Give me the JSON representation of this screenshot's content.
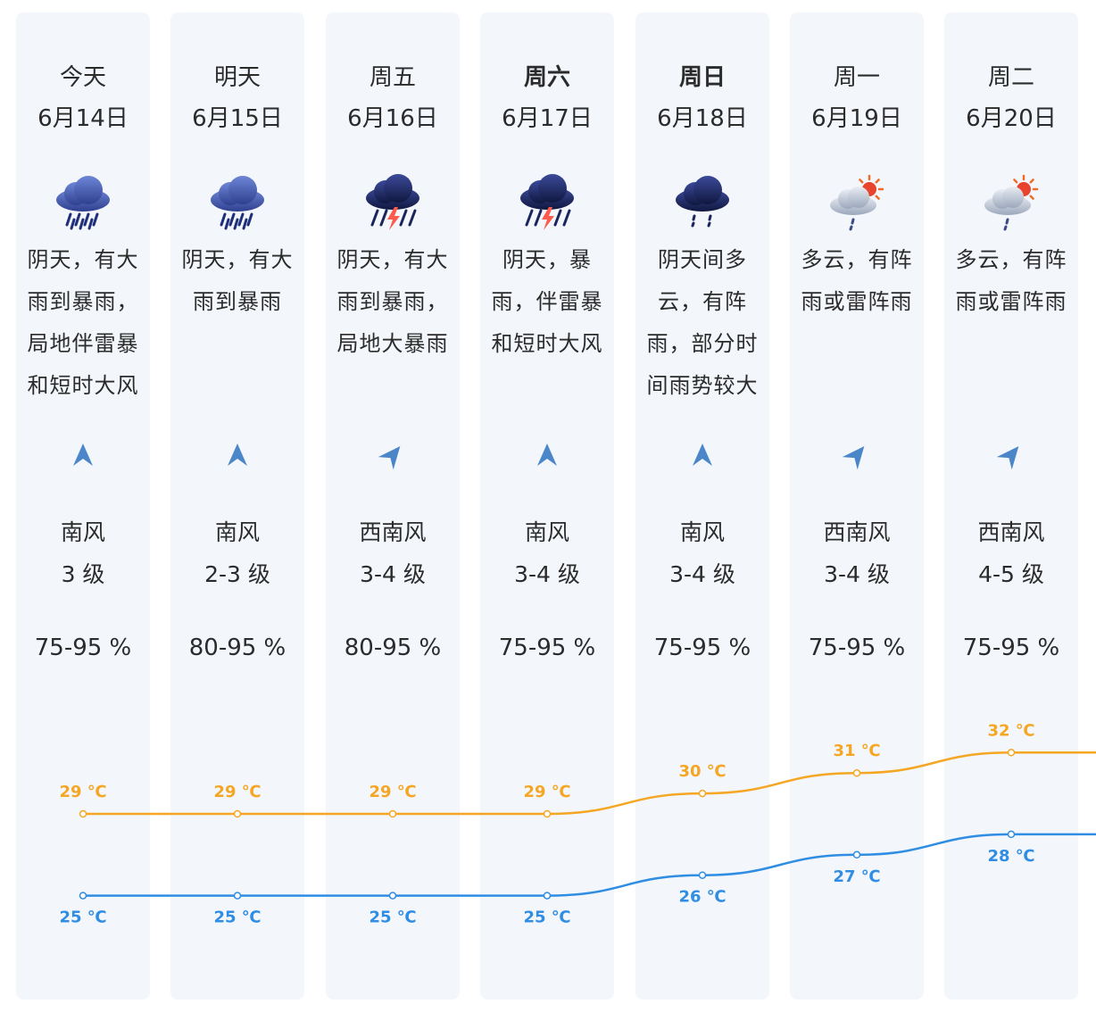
{
  "days": [
    {
      "name": "今天",
      "date": "6月14日",
      "bold": false,
      "icon": "heavy-rain-icon",
      "desc": "阴天，有大雨到暴雨，局地伴雷暴和短时大风",
      "wind_icon": "arrow-north-icon",
      "wind_dir": "南风",
      "wind_level": "3 级",
      "humidity": "75-95 %"
    },
    {
      "name": "明天",
      "date": "6月15日",
      "bold": false,
      "icon": "heavy-rain-icon",
      "desc": "阴天，有大雨到暴雨",
      "wind_icon": "arrow-north-icon",
      "wind_dir": "南风",
      "wind_level": "2-3 级",
      "humidity": "80-95 %"
    },
    {
      "name": "周五",
      "date": "6月16日",
      "bold": false,
      "icon": "thunderstorm-icon",
      "desc": "阴天，有大雨到暴雨，局地大暴雨",
      "wind_icon": "arrow-northeast-icon",
      "wind_dir": "西南风",
      "wind_level": "3-4 级",
      "humidity": "80-95 %"
    },
    {
      "name": "周六",
      "date": "6月17日",
      "bold": true,
      "icon": "thunderstorm-icon",
      "desc": "阴天，暴雨，伴雷暴和短时大风",
      "wind_icon": "arrow-north-icon",
      "wind_dir": "南风",
      "wind_level": "3-4 级",
      "humidity": "75-95 %"
    },
    {
      "name": "周日",
      "date": "6月18日",
      "bold": true,
      "icon": "light-rain-icon",
      "desc": "阴天间多云，有阵雨，部分时间雨势较大",
      "wind_icon": "arrow-north-icon",
      "wind_dir": "南风",
      "wind_level": "3-4 级",
      "humidity": "75-95 %"
    },
    {
      "name": "周一",
      "date": "6月19日",
      "bold": false,
      "icon": "sun-shower-icon",
      "desc": "多云，有阵雨或雷阵雨",
      "wind_icon": "arrow-northeast-icon",
      "wind_dir": "西南风",
      "wind_level": "3-4 级",
      "humidity": "75-95 %"
    },
    {
      "name": "周二",
      "date": "6月20日",
      "bold": false,
      "icon": "sun-shower-icon",
      "desc": "多云，有阵雨或雷阵雨",
      "wind_icon": "arrow-northeast-icon",
      "wind_dir": "西南风",
      "wind_level": "4-5 级",
      "humidity": "75-95 %"
    }
  ],
  "chart_data": {
    "type": "line",
    "categories": [
      "6月14日",
      "6月15日",
      "6月16日",
      "6月17日",
      "6月18日",
      "6月19日",
      "6月20日"
    ],
    "series": [
      {
        "values": [
          29,
          29,
          29,
          29,
          30,
          31,
          32
        ],
        "labels": [
          "29 ℃",
          "29 ℃",
          "29 ℃",
          "29 ℃",
          "30 ℃",
          "31 ℃",
          "32 ℃"
        ],
        "color": "#f5a623"
      },
      {
        "values": [
          25,
          25,
          25,
          25,
          26,
          27,
          28
        ],
        "labels": [
          "25 ℃",
          "25 ℃",
          "25 ℃",
          "25 ℃",
          "26 ℃",
          "27 ℃",
          "28 ℃"
        ],
        "color": "#2f8de4"
      }
    ],
    "unit": "℃"
  },
  "colors": {
    "column_bg": "#f3f6fb",
    "high_temp": "#f5a623",
    "low_temp": "#2f8de4",
    "wind_arrow": "#4a86c8"
  }
}
